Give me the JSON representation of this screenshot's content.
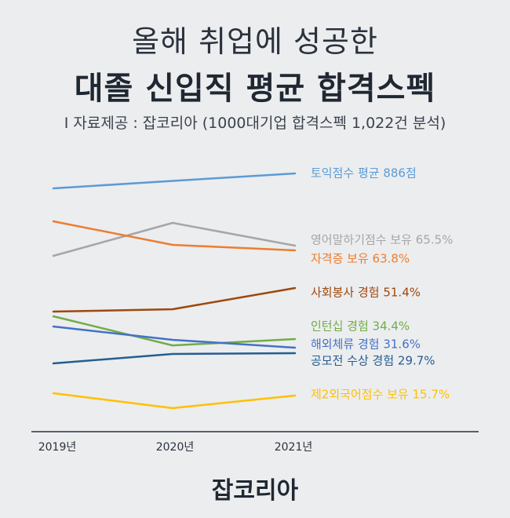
{
  "header": {
    "title_line1": "올해 취업에 성공한",
    "title_line2": "대졸 신입직 평균 합격스펙",
    "source": "I 자료제공 : 잡코리아 (1000대기업 합격스펙 1,022건 분석)"
  },
  "footer": {
    "logo": "잡코리아"
  },
  "chart_data": {
    "type": "line",
    "title": "대졸 신입직 평균 합격스펙",
    "x": [
      "2019년",
      "2020년",
      "2021년"
    ],
    "series": [
      {
        "name": "토익점수 평균",
        "label": "토익점수 평균 886점",
        "color": "#5b9bd5",
        "values": [
          872,
          879,
          886
        ]
      },
      {
        "name": "영어말하기점수 보유",
        "label": "영어말하기점수 보유 65.5%",
        "color": "#a6a6a6",
        "values": [
          63.4,
          71.5,
          65.5
        ]
      },
      {
        "name": "자격증 보유",
        "label": "자격증 보유 63.8%",
        "color": "#ed7d31",
        "values": [
          74.0,
          67.0,
          63.8
        ]
      },
      {
        "name": "사회봉사 경험",
        "label": "사회봉사 경험 51.4%",
        "color": "#9e480e",
        "values": [
          42.0,
          43.0,
          51.4
        ]
      },
      {
        "name": "인턴십 경험",
        "label": "인턴십 경험 34.4%",
        "color": "#70ad47",
        "values": [
          39.0,
          32.0,
          34.4
        ]
      },
      {
        "name": "해외체류 경험",
        "label": "해외체류 경험 31.6%",
        "color": "#4472c4",
        "values": [
          36.5,
          33.0,
          31.6
        ]
      },
      {
        "name": "공모전 수상 경험",
        "label": "공모전 수상 경험 29.7%",
        "color": "#255e91",
        "values": [
          27.0,
          29.5,
          29.7
        ]
      },
      {
        "name": "제2외국어점수 보유",
        "label": "제2외국어점수 보유 15.7%",
        "color": "#ffc000",
        "values": [
          17.0,
          11.5,
          15.7
        ]
      }
    ],
    "grid": false,
    "legend": "right-end-labels"
  }
}
